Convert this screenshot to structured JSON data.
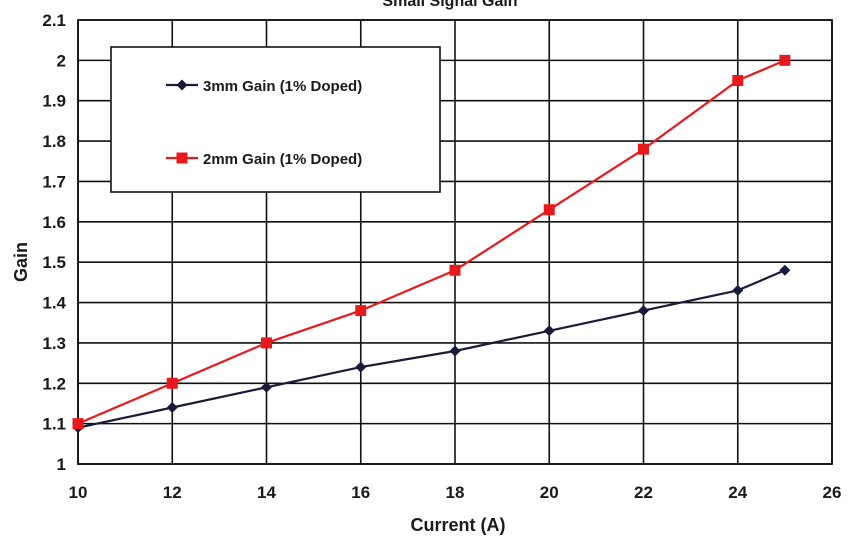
{
  "chart_data": {
    "type": "line",
    "title": "Small Signal Gain",
    "xlabel": "Current (A)",
    "ylabel": "Gain",
    "xlim": [
      10,
      26
    ],
    "ylim": [
      1,
      2.1
    ],
    "x_ticks": [
      10,
      12,
      14,
      16,
      18,
      20,
      22,
      24,
      26
    ],
    "y_ticks": [
      1,
      1.1,
      1.2,
      1.3,
      1.4,
      1.5,
      1.6,
      1.7,
      1.8,
      1.9,
      2,
      2.1
    ],
    "grid": true,
    "legend_position": "top-left",
    "series": [
      {
        "name": "3mm Gain (1% Doped)",
        "color": "#1a1a3a",
        "marker": "diamond",
        "points": [
          [
            10,
            1.09
          ],
          [
            12,
            1.14
          ],
          [
            14,
            1.19
          ],
          [
            16,
            1.24
          ],
          [
            18,
            1.28
          ],
          [
            20,
            1.33
          ],
          [
            22,
            1.38
          ],
          [
            24,
            1.43
          ],
          [
            25,
            1.48
          ]
        ]
      },
      {
        "name": "2mm Gain (1% Doped)",
        "color": "#e8191c",
        "marker": "square",
        "points": [
          [
            10,
            1.1
          ],
          [
            12,
            1.2
          ],
          [
            14,
            1.3
          ],
          [
            16,
            1.38
          ],
          [
            18,
            1.48
          ],
          [
            20,
            1.63
          ],
          [
            22,
            1.78
          ],
          [
            24,
            1.95
          ],
          [
            25,
            2.0
          ]
        ]
      }
    ]
  }
}
